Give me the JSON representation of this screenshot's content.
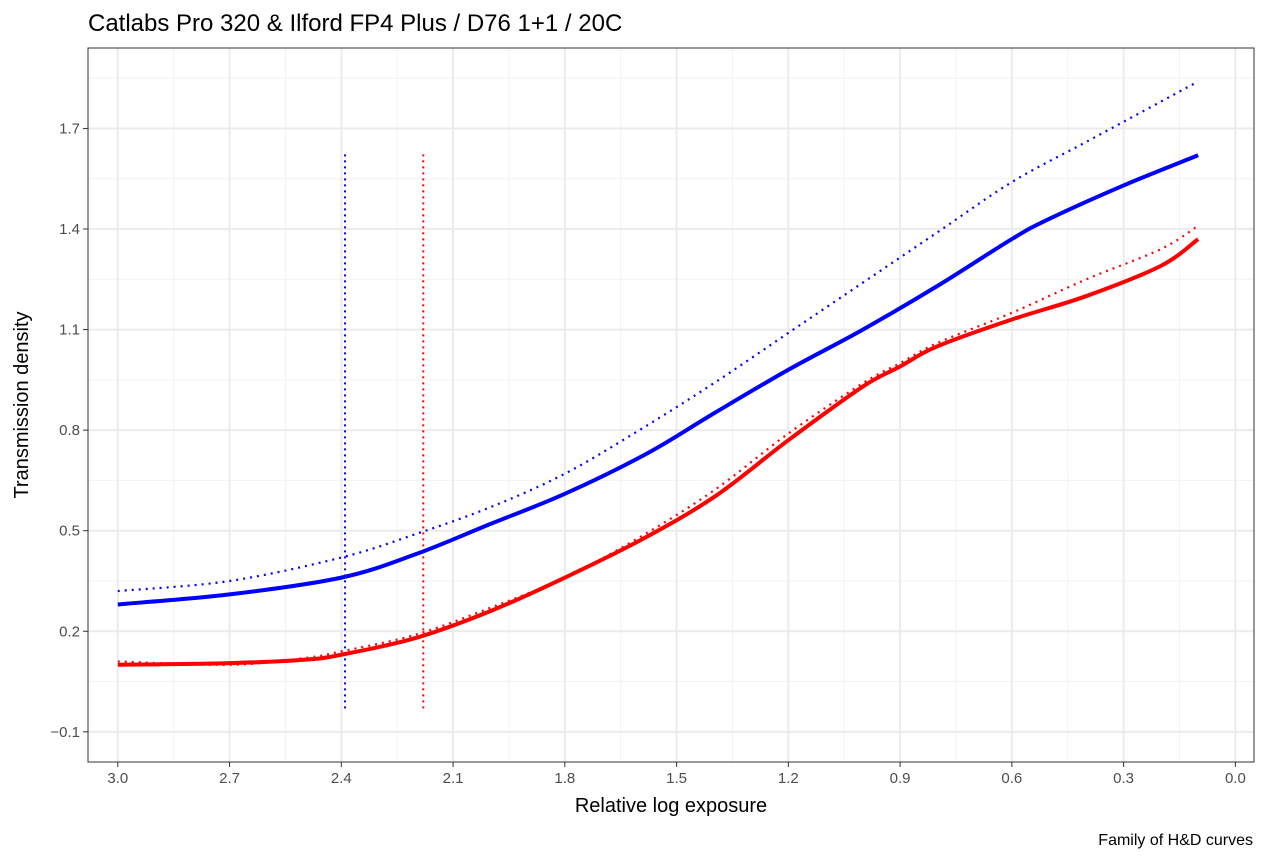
{
  "chart_data": {
    "type": "line",
    "title": "Catlabs Pro 320 & Ilford FP4 Plus / D76 1+1 / 20C",
    "xlabel": "Relative log exposure",
    "ylabel": "Transmission density",
    "caption": "Family of H&D curves",
    "x_reversed": true,
    "xlim": [
      3.08,
      -0.05
    ],
    "ylim": [
      -0.19,
      1.94
    ],
    "x_ticks": [
      "3.0",
      "2.7",
      "2.4",
      "2.1",
      "1.8",
      "1.5",
      "1.2",
      "0.9",
      "0.6",
      "0.3",
      "0.0"
    ],
    "y_ticks": [
      "-0.1",
      "0.2",
      "0.5",
      "0.8",
      "1.1",
      "1.4",
      "1.7"
    ],
    "grid": true,
    "legend": "none",
    "series": [
      {
        "color": "#0000ff",
        "style": "solid",
        "x": [
          3.0,
          2.7,
          2.4,
          2.2,
          2.0,
          1.8,
          1.58,
          1.4,
          1.2,
          1.0,
          0.8,
          0.6,
          0.5,
          0.3,
          0.1
        ],
        "y": [
          0.28,
          0.31,
          0.36,
          0.43,
          0.52,
          0.61,
          0.73,
          0.85,
          0.98,
          1.1,
          1.23,
          1.37,
          1.43,
          1.53,
          1.62
        ]
      },
      {
        "color": "#0000ff",
        "style": "dotted",
        "x": [
          3.0,
          2.7,
          2.4,
          2.2,
          2.0,
          1.8,
          1.6,
          1.4,
          1.2,
          1.0,
          0.8,
          0.6,
          0.4,
          0.2,
          0.1
        ],
        "y": [
          0.32,
          0.35,
          0.42,
          0.49,
          0.57,
          0.67,
          0.8,
          0.94,
          1.09,
          1.24,
          1.39,
          1.54,
          1.66,
          1.78,
          1.84
        ]
      },
      {
        "color": "#ff0000",
        "style": "solid",
        "x": [
          3.0,
          2.7,
          2.5,
          2.4,
          2.2,
          2.0,
          1.8,
          1.6,
          1.4,
          1.2,
          1.0,
          0.9,
          0.8,
          0.6,
          0.4,
          0.2,
          0.1
        ],
        "y": [
          0.1,
          0.105,
          0.115,
          0.13,
          0.18,
          0.26,
          0.36,
          0.47,
          0.6,
          0.77,
          0.93,
          0.99,
          1.05,
          1.13,
          1.2,
          1.29,
          1.37
        ]
      },
      {
        "color": "#ff0000",
        "style": "dotted",
        "x": [
          3.0,
          2.7,
          2.5,
          2.4,
          2.2,
          2.0,
          1.8,
          1.6,
          1.4,
          1.2,
          1.0,
          0.9,
          0.8,
          0.6,
          0.4,
          0.2,
          0.1
        ],
        "y": [
          0.11,
          0.1,
          0.12,
          0.14,
          0.19,
          0.27,
          0.36,
          0.48,
          0.62,
          0.79,
          0.94,
          1.0,
          1.06,
          1.15,
          1.25,
          1.34,
          1.41
        ]
      }
    ],
    "vlines": [
      {
        "x": 2.39,
        "y_from": -0.03,
        "y_to": 1.63,
        "color": "#0000ff",
        "style": "dotted"
      },
      {
        "x": 2.18,
        "y_from": -0.03,
        "y_to": 1.63,
        "color": "#ff0000",
        "style": "dotted"
      }
    ]
  }
}
